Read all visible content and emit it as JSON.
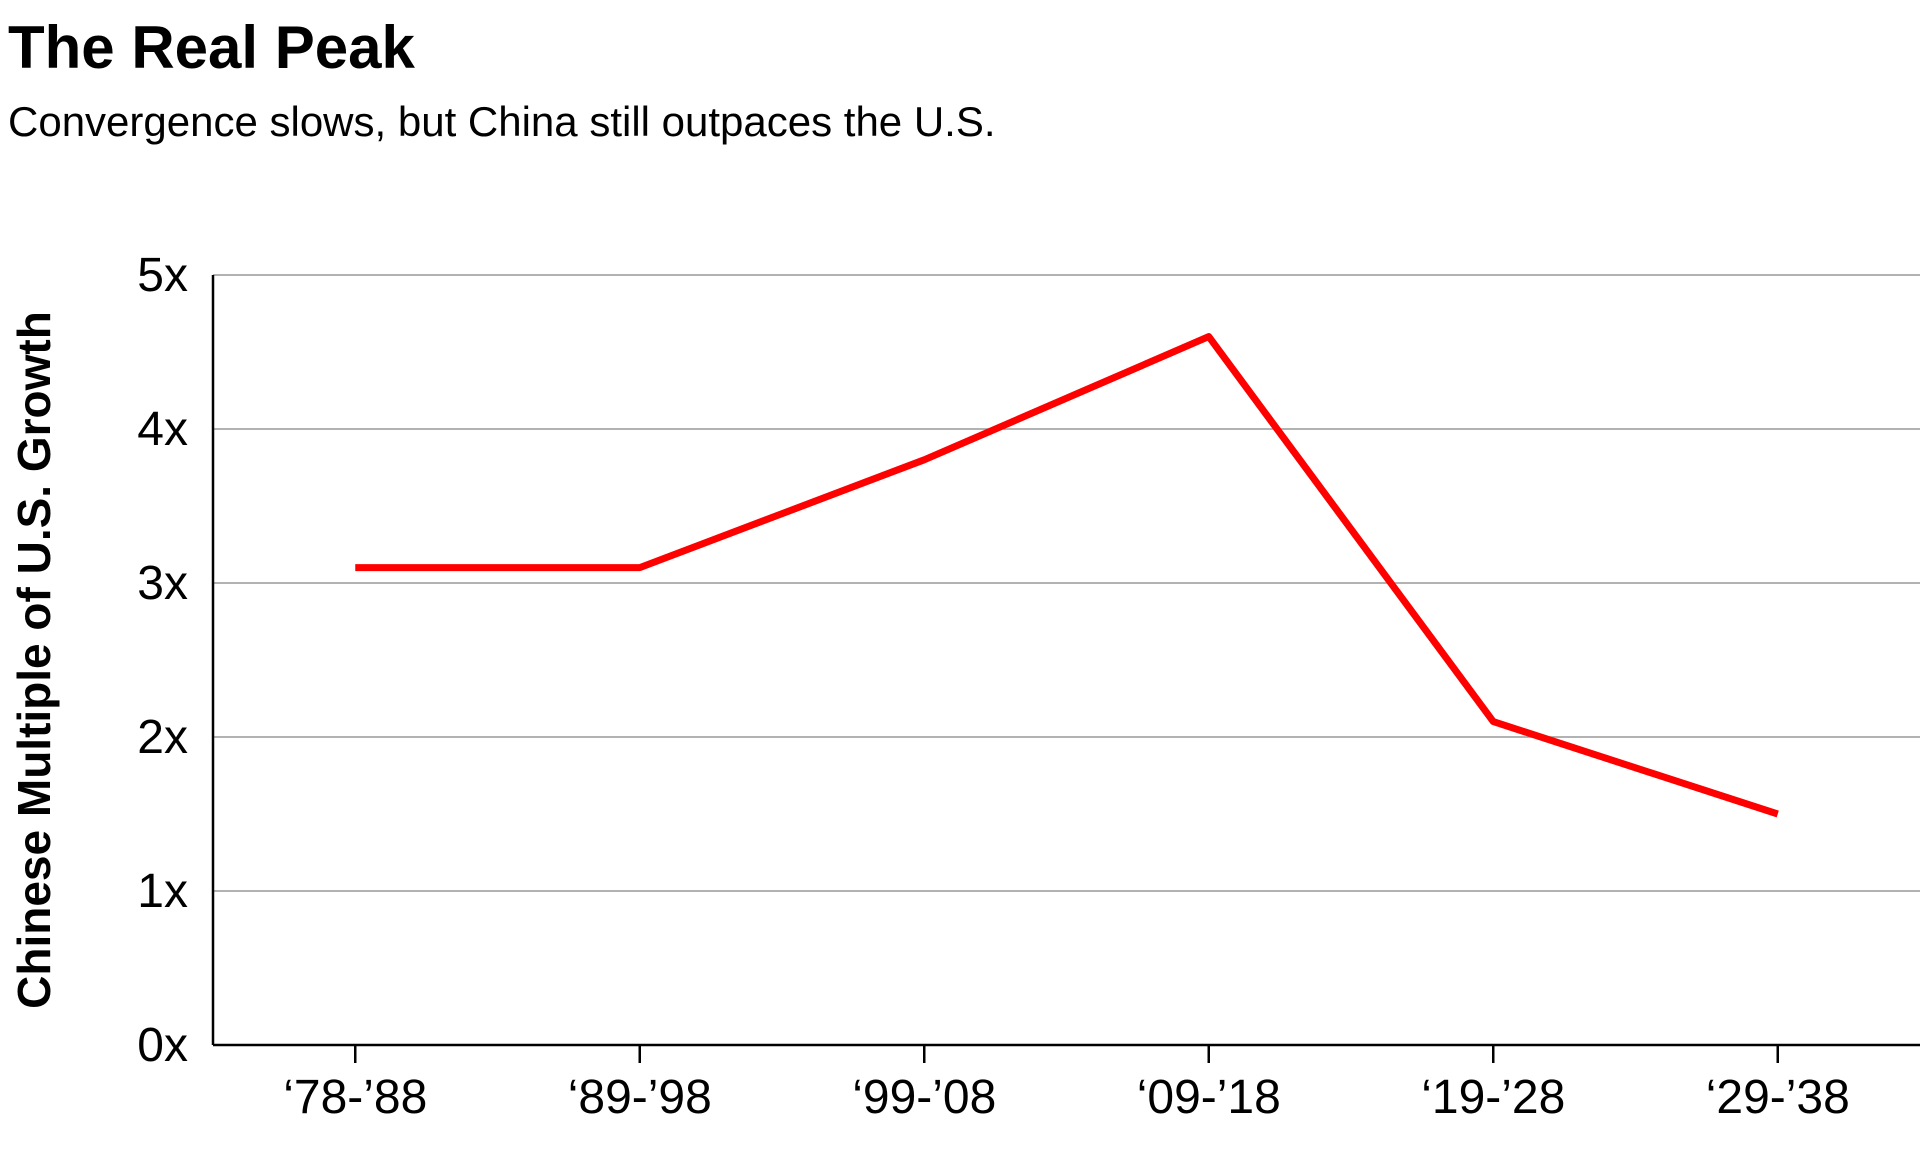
{
  "chart_data": {
    "type": "line",
    "title": "The Real Peak",
    "subtitle": "Convergence slows, but China still outpaces the U.S.",
    "y_label": "Chinese Multiple of U.S. Growth",
    "categories": [
      "‘78-’88",
      "‘89-’98",
      "‘99-’08",
      "‘09-’18",
      "‘19-’28",
      "‘29-’38"
    ],
    "values": [
      3.1,
      3.1,
      3.8,
      4.6,
      2.1,
      1.5
    ],
    "color": "#ff0000",
    "ylim": [
      0,
      5
    ],
    "yticks": [
      {
        "value": 0,
        "label": "0x"
      },
      {
        "value": 1,
        "label": "1x"
      },
      {
        "value": 2,
        "label": "2x"
      },
      {
        "value": 3,
        "label": "3x"
      },
      {
        "value": 4,
        "label": "4x"
      },
      {
        "value": 5,
        "label": "5x"
      }
    ],
    "grid": true
  }
}
